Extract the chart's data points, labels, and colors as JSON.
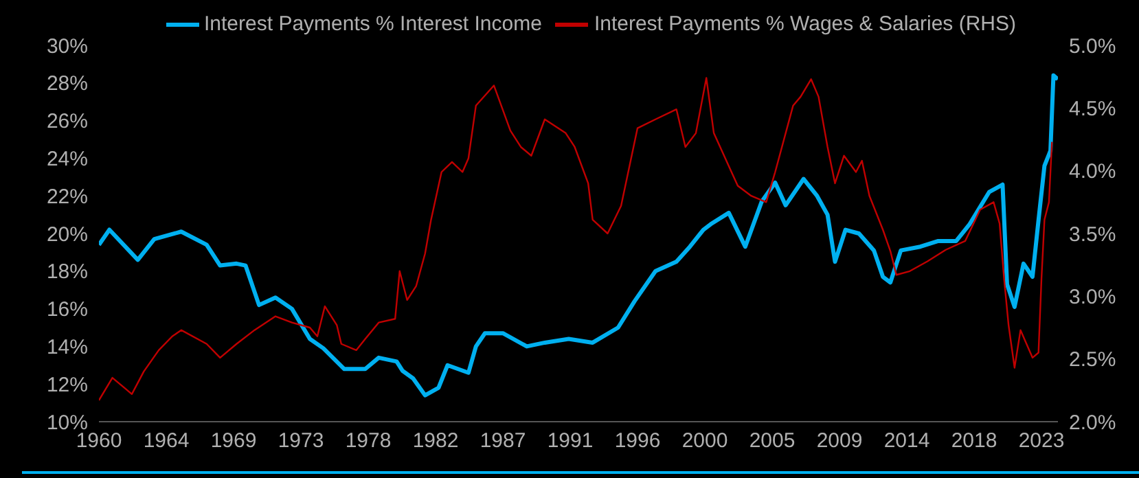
{
  "chart_data": {
    "type": "line",
    "legend": "top",
    "grid": false,
    "xlim": [
      1960,
      2024.1
    ],
    "xticks": [
      {
        "value": 1960,
        "label": "1960"
      },
      {
        "value": 1964.5,
        "label": "1964"
      },
      {
        "value": 1969,
        "label": "1969"
      },
      {
        "value": 1973.5,
        "label": "1973"
      },
      {
        "value": 1978,
        "label": "1978"
      },
      {
        "value": 1982.5,
        "label": "1982"
      },
      {
        "value": 1987,
        "label": "1987"
      },
      {
        "value": 1991.5,
        "label": "1991"
      },
      {
        "value": 1996,
        "label": "1996"
      },
      {
        "value": 2000.5,
        "label": "2000"
      },
      {
        "value": 2005,
        "label": "2005"
      },
      {
        "value": 2009.5,
        "label": "2009"
      },
      {
        "value": 2014,
        "label": "2014"
      },
      {
        "value": 2018.5,
        "label": "2018"
      },
      {
        "value": 2023,
        "label": "2023"
      }
    ],
    "ylim": [
      10,
      30
    ],
    "yticks": [
      {
        "value": 10,
        "label": "10%"
      },
      {
        "value": 12,
        "label": "12%"
      },
      {
        "value": 14,
        "label": "14%"
      },
      {
        "value": 16,
        "label": "16%"
      },
      {
        "value": 18,
        "label": "18%"
      },
      {
        "value": 20,
        "label": "20%"
      },
      {
        "value": 22,
        "label": "22%"
      },
      {
        "value": 24,
        "label": "24%"
      },
      {
        "value": 26,
        "label": "26%"
      },
      {
        "value": 28,
        "label": "28%"
      },
      {
        "value": 30,
        "label": "30%"
      }
    ],
    "y2lim": [
      2,
      5
    ],
    "y2ticks": [
      {
        "value": 2,
        "label": "2.0%"
      },
      {
        "value": 2.5,
        "label": "2.5%"
      },
      {
        "value": 3,
        "label": "3.0%"
      },
      {
        "value": 3.5,
        "label": "3.5%"
      },
      {
        "value": 4,
        "label": "4.0%"
      },
      {
        "value": 4.5,
        "label": "4.5%"
      },
      {
        "value": 5,
        "label": "5.0%"
      }
    ],
    "series": [
      {
        "name": "Interest Payments % Interest Income",
        "color": "#00b0f0",
        "x": [
          1960.0,
          1960.7,
          1962.6,
          1963.7,
          1965.5,
          1967.2,
          1968.1,
          1969.2,
          1969.8,
          1970.7,
          1971.8,
          1972.9,
          1974.1,
          1975.0,
          1976.4,
          1977.8,
          1978.7,
          1979.9,
          1980.3,
          1981.0,
          1981.8,
          1982.7,
          1983.3,
          1984.7,
          1985.2,
          1985.8,
          1987.0,
          1988.6,
          1989.8,
          1991.4,
          1993.0,
          1994.7,
          1995.8,
          1997.2,
          1998.6,
          1999.5,
          2000.4,
          2000.9,
          2002.1,
          2003.2,
          2004.3,
          2005.2,
          2005.9,
          2007.1,
          2008.0,
          2008.7,
          2009.2,
          2009.9,
          2010.8,
          2011.8,
          2012.4,
          2012.9,
          2013.6,
          2014.9,
          2016.1,
          2017.3,
          2018.2,
          2019.5,
          2020.4,
          2020.7,
          2021.2,
          2021.8,
          2022.4,
          2022.8,
          2023.2,
          2023.6,
          2023.8,
          2024.1
        ],
        "values": [
          19.4,
          20.2,
          18.6,
          19.7,
          20.1,
          19.4,
          18.3,
          18.4,
          18.3,
          16.2,
          16.6,
          16.0,
          14.4,
          13.9,
          12.8,
          12.8,
          13.4,
          13.2,
          12.7,
          12.3,
          11.4,
          11.8,
          13.0,
          12.6,
          14.0,
          14.7,
          14.7,
          14.0,
          14.2,
          14.4,
          14.2,
          15.0,
          16.4,
          18.0,
          18.5,
          19.3,
          20.2,
          20.5,
          21.1,
          19.3,
          21.7,
          22.7,
          21.5,
          22.9,
          22.0,
          21.0,
          18.5,
          20.2,
          20.0,
          19.1,
          17.7,
          17.4,
          19.1,
          19.3,
          19.6,
          19.6,
          20.5,
          22.2,
          22.6,
          17.3,
          16.1,
          18.4,
          17.7,
          20.7,
          23.6,
          24.4,
          28.4,
          28.2
        ]
      },
      {
        "name": "Interest Payments % Wages & Salaries (RHS)",
        "color": "#c00000",
        "axis": "y2",
        "x": [
          1960.0,
          1960.9,
          1961.7,
          1962.2,
          1963.0,
          1964.0,
          1964.9,
          1965.5,
          1967.2,
          1968.1,
          1969.2,
          1970.4,
          1971.8,
          1972.9,
          1974.1,
          1974.6,
          1975.1,
          1975.9,
          1976.2,
          1977.2,
          1977.8,
          1978.7,
          1979.8,
          1980.1,
          1980.6,
          1981.2,
          1981.8,
          1982.2,
          1982.9,
          1983.6,
          1984.3,
          1984.7,
          1985.2,
          1986.4,
          1987.5,
          1988.2,
          1988.9,
          1989.8,
          1991.2,
          1991.8,
          1992.7,
          1993.0,
          1994.0,
          1994.9,
          1996.0,
          1997.2,
          1998.6,
          1999.2,
          1999.9,
          2000.6,
          2001.1,
          2002.7,
          2003.6,
          2004.6,
          2005.2,
          2006.4,
          2006.9,
          2007.6,
          2008.1,
          2008.7,
          2009.2,
          2009.8,
          2010.6,
          2011.0,
          2011.5,
          2012.4,
          2012.9,
          2013.3,
          2014.2,
          2015.4,
          2016.6,
          2017.9,
          2018.9,
          2019.8,
          2020.2,
          2020.5,
          2020.8,
          2021.2,
          2021.6,
          2022.4,
          2022.8,
          2023.0,
          2023.2,
          2023.5,
          2023.7
        ],
        "values": [
          2.17,
          2.35,
          2.27,
          2.22,
          2.4,
          2.57,
          2.68,
          2.73,
          2.62,
          2.51,
          2.62,
          2.73,
          2.84,
          2.79,
          2.75,
          2.68,
          2.92,
          2.77,
          2.62,
          2.57,
          2.66,
          2.79,
          2.82,
          3.2,
          2.97,
          3.08,
          3.34,
          3.61,
          3.99,
          4.07,
          3.99,
          4.1,
          4.52,
          4.68,
          4.32,
          4.19,
          4.12,
          4.41,
          4.3,
          4.19,
          3.9,
          3.61,
          3.5,
          3.72,
          4.34,
          4.41,
          4.49,
          4.19,
          4.3,
          4.74,
          4.3,
          3.88,
          3.8,
          3.75,
          3.99,
          4.52,
          4.59,
          4.73,
          4.59,
          4.19,
          3.9,
          4.12,
          3.99,
          4.08,
          3.8,
          3.53,
          3.36,
          3.17,
          3.2,
          3.28,
          3.37,
          3.44,
          3.69,
          3.75,
          3.58,
          3.14,
          2.77,
          2.43,
          2.73,
          2.51,
          2.55,
          3.14,
          3.61,
          3.75,
          4.23
        ]
      }
    ]
  }
}
